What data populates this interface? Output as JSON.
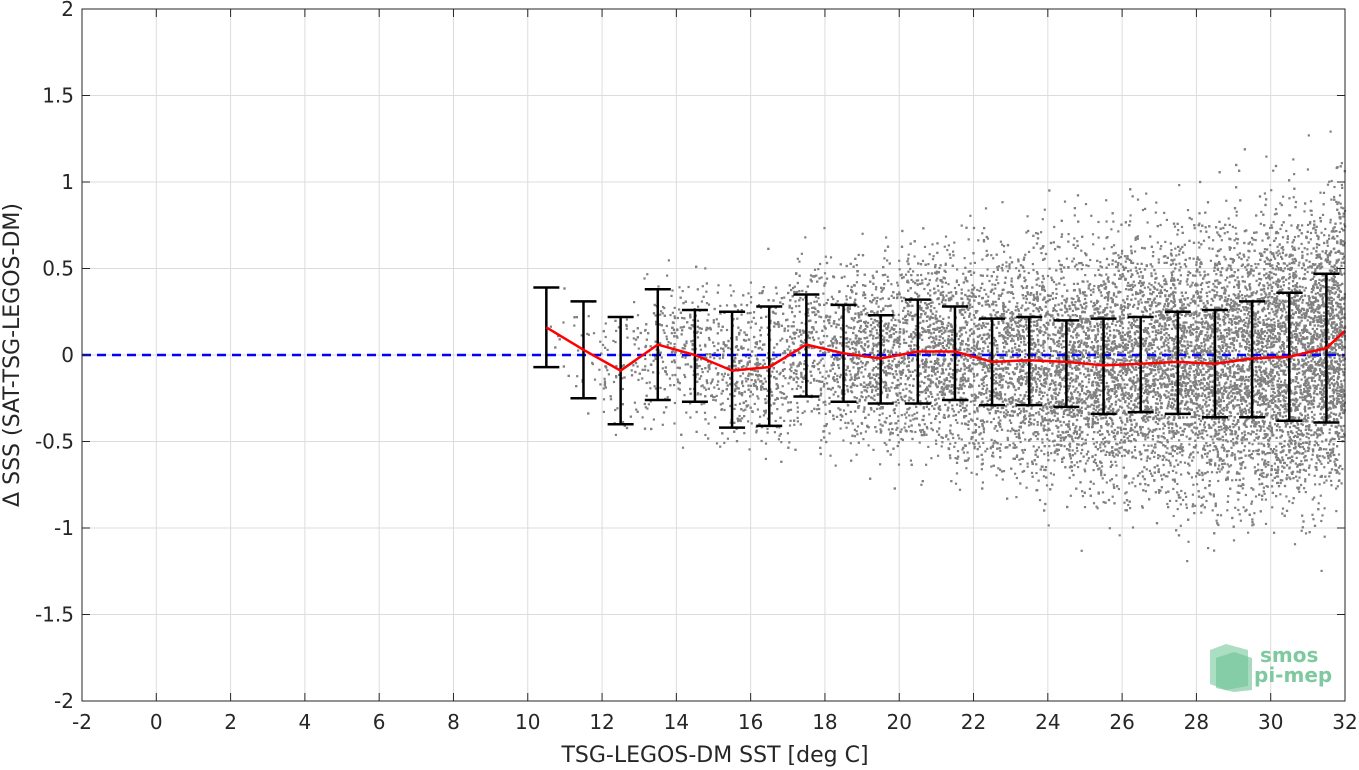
{
  "chart_data": {
    "type": "scatter",
    "xlabel": "TSG-LEGOS-DM SST [deg C]",
    "ylabel": "Δ SSS (SAT-TSG-LEGOS-DM)",
    "xlim": [
      -2,
      32
    ],
    "ylim": [
      -2,
      2
    ],
    "xticks": [
      -2,
      0,
      2,
      4,
      6,
      8,
      10,
      12,
      14,
      16,
      18,
      20,
      22,
      24,
      26,
      28,
      30,
      32
    ],
    "yticks": [
      -2,
      -1.5,
      -1,
      -0.5,
      0,
      0.5,
      1,
      1.5,
      2
    ],
    "xtick_labels": [
      "-2",
      "0",
      "2",
      "4",
      "6",
      "8",
      "10",
      "12",
      "14",
      "16",
      "18",
      "20",
      "22",
      "24",
      "26",
      "28",
      "30",
      "32"
    ],
    "ytick_labels": [
      "-2",
      "-1.5",
      "-1",
      "-0.5",
      "0",
      "0.5",
      "1",
      "1.5",
      "2"
    ],
    "grid": true,
    "zero_line": {
      "y": 0,
      "style": "dashed",
      "color": "#0000ff"
    },
    "scatter": {
      "color": "#808080",
      "x_range": [
        10.5,
        32
      ],
      "density": "increasing with SST"
    },
    "series": [
      {
        "type": "line",
        "color": "#ff0000",
        "x": [
          10.5,
          11.5,
          12.5,
          13.5,
          14.5,
          15.5,
          16.5,
          17.5,
          18.5,
          19.5,
          20.5,
          21.5,
          22.5,
          23.5,
          24.5,
          25.5,
          26.5,
          27.5,
          28.5,
          29.5,
          30.5,
          31.5,
          32
        ],
        "y": [
          0.16,
          0.03,
          -0.09,
          0.06,
          0.0,
          -0.09,
          -0.07,
          0.06,
          0.01,
          -0.02,
          0.02,
          0.02,
          -0.04,
          -0.03,
          -0.04,
          -0.06,
          -0.05,
          -0.04,
          -0.05,
          -0.02,
          -0.01,
          0.04,
          0.14
        ]
      },
      {
        "type": "errorbar",
        "color": "#000000",
        "x": [
          10.5,
          11.5,
          12.5,
          13.5,
          14.5,
          15.5,
          16.5,
          17.5,
          18.5,
          19.5,
          20.5,
          21.5,
          22.5,
          23.5,
          24.5,
          25.5,
          26.5,
          27.5,
          28.5,
          29.5,
          30.5,
          31.5
        ],
        "low": [
          -0.07,
          -0.25,
          -0.4,
          -0.26,
          -0.27,
          -0.42,
          -0.41,
          -0.24,
          -0.27,
          -0.28,
          -0.28,
          -0.26,
          -0.29,
          -0.29,
          -0.3,
          -0.34,
          -0.33,
          -0.34,
          -0.36,
          -0.36,
          -0.38,
          -0.39
        ],
        "high": [
          0.39,
          0.31,
          0.22,
          0.38,
          0.26,
          0.25,
          0.28,
          0.35,
          0.29,
          0.23,
          0.32,
          0.28,
          0.21,
          0.22,
          0.2,
          0.21,
          0.22,
          0.25,
          0.26,
          0.31,
          0.36,
          0.47
        ]
      }
    ]
  },
  "logo": {
    "line1": "smos",
    "line2": "pi-mep",
    "color": "#7fc9a0"
  }
}
